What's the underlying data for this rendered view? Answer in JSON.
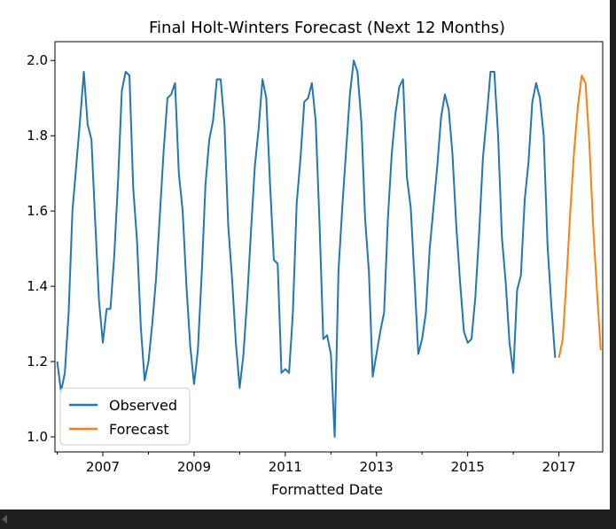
{
  "colors": {
    "observed": "#1f77b4",
    "forecast": "#ff7f0e",
    "axis": "#000000",
    "background": "#ffffff"
  },
  "chart_data": {
    "type": "line",
    "title": "Final Holt-Winters Forecast (Next 12 Months)",
    "xlabel": "Formatted Date",
    "ylabel": "",
    "grid": false,
    "legend_position": "lower-left",
    "xlim": [
      2005.95,
      2017.96
    ],
    "ylim": [
      0.96,
      2.05
    ],
    "x_ticks": [
      2007,
      2009,
      2011,
      2013,
      2015,
      2017
    ],
    "x_tick_labels": [
      "2007",
      "2009",
      "2011",
      "2013",
      "2015",
      "2017"
    ],
    "y_ticks": [
      1.0,
      1.2,
      1.4,
      1.6,
      1.8,
      2.0
    ],
    "y_tick_labels": [
      "1.0",
      "1.2",
      "1.4",
      "1.6",
      "1.8",
      "2.0"
    ],
    "series": [
      {
        "name": "Observed",
        "x_start": 2006.0,
        "x_step": 0.0833333,
        "values": [
          1.2,
          1.12,
          1.17,
          1.33,
          1.6,
          1.72,
          1.84,
          1.97,
          1.83,
          1.79,
          1.57,
          1.36,
          1.25,
          1.34,
          1.34,
          1.48,
          1.68,
          1.92,
          1.97,
          1.96,
          1.66,
          1.52,
          1.29,
          1.15,
          1.2,
          1.3,
          1.42,
          1.59,
          1.76,
          1.9,
          1.91,
          1.94,
          1.7,
          1.6,
          1.4,
          1.24,
          1.14,
          1.23,
          1.43,
          1.67,
          1.79,
          1.84,
          1.95,
          1.95,
          1.83,
          1.56,
          1.42,
          1.25,
          1.13,
          1.22,
          1.37,
          1.55,
          1.72,
          1.82,
          1.95,
          1.9,
          1.67,
          1.47,
          1.46,
          1.17,
          1.18,
          1.17,
          1.33,
          1.62,
          1.74,
          1.89,
          1.9,
          1.94,
          1.84,
          1.57,
          1.26,
          1.27,
          1.22,
          1.0,
          1.44,
          1.61,
          1.76,
          1.91,
          2.0,
          1.97,
          1.84,
          1.58,
          1.44,
          1.16,
          1.22,
          1.28,
          1.33,
          1.58,
          1.75,
          1.86,
          1.93,
          1.95,
          1.69,
          1.61,
          1.42,
          1.22,
          1.26,
          1.33,
          1.5,
          1.61,
          1.72,
          1.85,
          1.91,
          1.87,
          1.75,
          1.56,
          1.41,
          1.28,
          1.25,
          1.26,
          1.37,
          1.54,
          1.74,
          1.85,
          1.97,
          1.97,
          1.8,
          1.53,
          1.41,
          1.25,
          1.17,
          1.39,
          1.43,
          1.63,
          1.73,
          1.89,
          1.94,
          1.9,
          1.8,
          1.51,
          1.35,
          1.21
        ]
      },
      {
        "name": "Forecast",
        "x_start": 2017.0,
        "x_step": 0.0833333,
        "values": [
          1.21,
          1.26,
          1.42,
          1.6,
          1.76,
          1.88,
          1.96,
          1.94,
          1.78,
          1.56,
          1.39,
          1.23
        ]
      }
    ]
  }
}
